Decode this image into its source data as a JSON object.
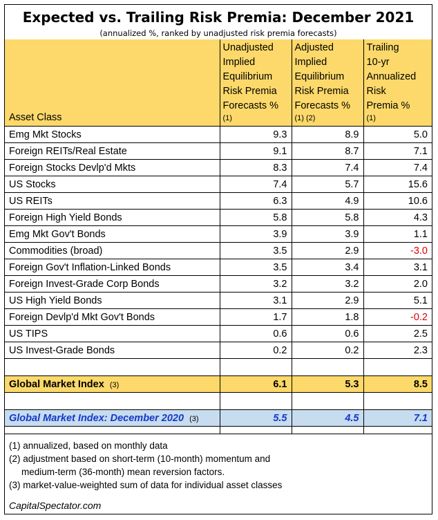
{
  "title": "Expected vs. Trailing Risk Premia: December 2021",
  "subtitle": "(annualized %, ranked by unadjusted risk premia forecasts)",
  "columns": {
    "asset": "Asset Class",
    "unadjusted": [
      "Unadjusted",
      "Implied",
      "Equilibrium",
      "Risk Premia",
      "Forecasts %"
    ],
    "unadjusted_note": "(1)",
    "adjusted": [
      "Adjusted",
      "Implied",
      "Equilibrium",
      "Risk Premia",
      "Forecasts %"
    ],
    "adjusted_note": "(1) (2)",
    "trailing": [
      "Trailing",
      "10-yr",
      "Annualized",
      "Risk",
      "Premia %"
    ],
    "trailing_note": "(1)"
  },
  "rows": [
    {
      "asset": "Emg Mkt Stocks",
      "unadjusted": "9.3",
      "adjusted": "8.9",
      "trailing": "5.0"
    },
    {
      "asset": "Foreign REITs/Real Estate",
      "unadjusted": "9.1",
      "adjusted": "8.7",
      "trailing": "7.1"
    },
    {
      "asset": "Foreign Stocks Devlp'd Mkts",
      "unadjusted": "8.3",
      "adjusted": "7.4",
      "trailing": "7.4"
    },
    {
      "asset": "US Stocks",
      "unadjusted": "7.4",
      "adjusted": "5.7",
      "trailing": "15.6"
    },
    {
      "asset": "US REITs",
      "unadjusted": "6.3",
      "adjusted": "4.9",
      "trailing": "10.6"
    },
    {
      "asset": "Foreign High Yield Bonds",
      "unadjusted": "5.8",
      "adjusted": "5.8",
      "trailing": "4.3"
    },
    {
      "asset": "Emg Mkt Gov't Bonds",
      "unadjusted": "3.9",
      "adjusted": "3.9",
      "trailing": "1.1"
    },
    {
      "asset": "Commodities (broad)",
      "unadjusted": "3.5",
      "adjusted": "2.9",
      "trailing": "-3.0"
    },
    {
      "asset": "Foreign Gov't Inflation-Linked Bonds",
      "unadjusted": "3.5",
      "adjusted": "3.4",
      "trailing": "3.1"
    },
    {
      "asset": "Foreign Invest-Grade Corp Bonds",
      "unadjusted": "3.2",
      "adjusted": "3.2",
      "trailing": "2.0"
    },
    {
      "asset": "US High Yield Bonds",
      "unadjusted": "3.1",
      "adjusted": "2.9",
      "trailing": "5.1"
    },
    {
      "asset": "Foreign Devlp'd Mkt Gov't Bonds",
      "unadjusted": "1.7",
      "adjusted": "1.8",
      "trailing": "-0.2"
    },
    {
      "asset": "US TIPS",
      "unadjusted": "0.6",
      "adjusted": "0.6",
      "trailing": "2.5"
    },
    {
      "asset": "US Invest-Grade Bonds",
      "unadjusted": "0.2",
      "adjusted": "0.2",
      "trailing": "2.3"
    }
  ],
  "global_index": {
    "label": "Global Market Index",
    "note": "(3)",
    "unadjusted": "6.1",
    "adjusted": "5.3",
    "trailing": "8.5"
  },
  "global_index_2020": {
    "label": "Global Market Index: December 2020",
    "note": "(3)",
    "unadjusted": "5.5",
    "adjusted": "4.5",
    "trailing": "7.1"
  },
  "footnotes": [
    "(1) annualized, based on monthly data",
    "(2) adjustment based on short-term (10-month) momentum and",
    "medium-term (36-month) mean reversion factors.",
    "(3) market-value-weighted sum of data for individual asset classes"
  ],
  "source": "CapitalSpectator.com",
  "colors": {
    "header_bg": "#fcd96a",
    "row2020_bg": "#c7dcef",
    "row2020_text": "#1538c9",
    "negative": "#e00000"
  }
}
